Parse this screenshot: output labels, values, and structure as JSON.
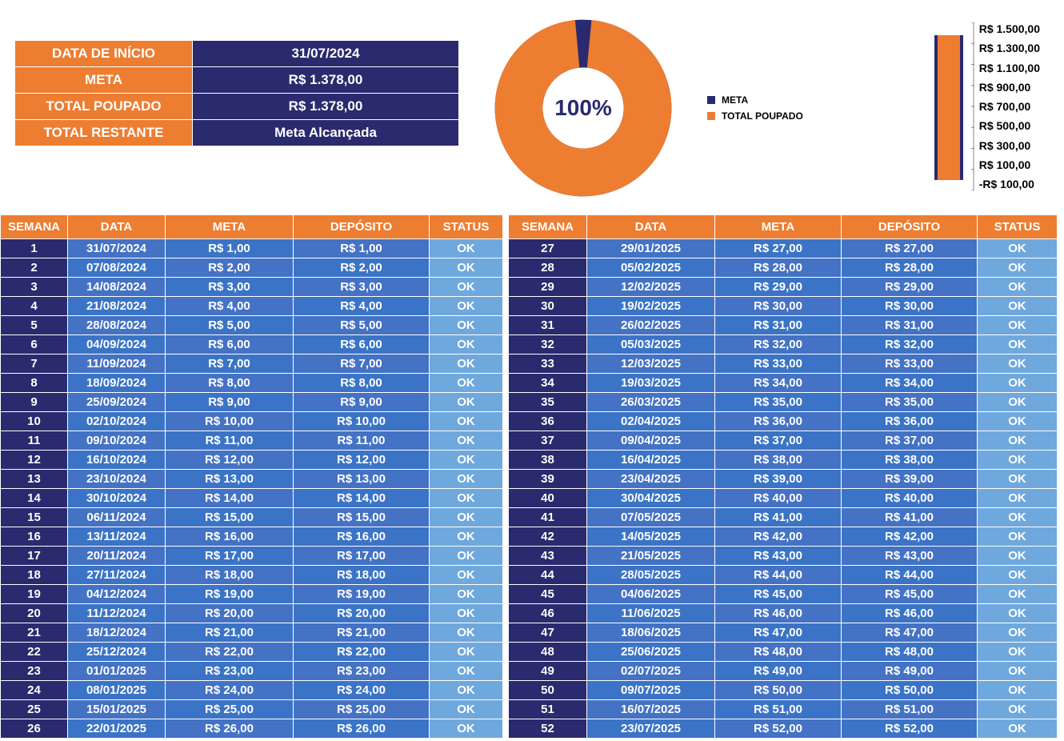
{
  "colors": {
    "orange": "#ed7d31",
    "navy": "#2a2a6e",
    "blue_dark": "#4472c4",
    "blue_mid": "#3b74c6",
    "blue_light": "#5b9bd5",
    "status_bg": "#6fa8dc"
  },
  "summary": {
    "labels": {
      "start": "DATA DE INÍCIO",
      "goal": "META",
      "saved": "TOTAL POUPADO",
      "remaining": "TOTAL RESTANTE"
    },
    "values": {
      "start": "31/07/2024",
      "goal": "R$ 1.378,00",
      "saved": "R$ 1.378,00",
      "remaining": "Meta Alcançada"
    }
  },
  "donut": {
    "type": "donut",
    "pct_label": "100%",
    "pct_value": 100,
    "series": [
      {
        "name": "META",
        "color": "#2a2a6e"
      },
      {
        "name": "TOTAL POUPADO",
        "color": "#ed7d31"
      }
    ],
    "legend_labels": {
      "meta": "META",
      "poupado": "TOTAL POUPADO"
    },
    "center_text_color": "#2a2a6e",
    "background": "#ffffff"
  },
  "bar": {
    "type": "bar",
    "bar_color": "#2a2a6e",
    "fill_color": "#ed7d31",
    "ylim": [
      -100,
      1500
    ],
    "value": 1378,
    "goal": 1378,
    "y_ticks": [
      "R$ 1.500,00",
      "R$ 1.300,00",
      "R$ 1.100,00",
      "R$ 900,00",
      "R$ 700,00",
      "R$ 500,00",
      "R$ 300,00",
      "R$ 100,00",
      "-R$ 100,00"
    ]
  },
  "table": {
    "headers": {
      "semana": "SEMANA",
      "data": "DATA",
      "meta": "META",
      "deposito": "DEPÓSITO",
      "status": "STATUS"
    },
    "left": [
      {
        "s": "1",
        "d": "31/07/2024",
        "m": "R$ 1,00",
        "p": "R$ 1,00",
        "st": "OK"
      },
      {
        "s": "2",
        "d": "07/08/2024",
        "m": "R$ 2,00",
        "p": "R$ 2,00",
        "st": "OK"
      },
      {
        "s": "3",
        "d": "14/08/2024",
        "m": "R$ 3,00",
        "p": "R$ 3,00",
        "st": "OK"
      },
      {
        "s": "4",
        "d": "21/08/2024",
        "m": "R$ 4,00",
        "p": "R$ 4,00",
        "st": "OK"
      },
      {
        "s": "5",
        "d": "28/08/2024",
        "m": "R$ 5,00",
        "p": "R$ 5,00",
        "st": "OK"
      },
      {
        "s": "6",
        "d": "04/09/2024",
        "m": "R$ 6,00",
        "p": "R$ 6,00",
        "st": "OK"
      },
      {
        "s": "7",
        "d": "11/09/2024",
        "m": "R$ 7,00",
        "p": "R$ 7,00",
        "st": "OK"
      },
      {
        "s": "8",
        "d": "18/09/2024",
        "m": "R$ 8,00",
        "p": "R$ 8,00",
        "st": "OK"
      },
      {
        "s": "9",
        "d": "25/09/2024",
        "m": "R$ 9,00",
        "p": "R$ 9,00",
        "st": "OK"
      },
      {
        "s": "10",
        "d": "02/10/2024",
        "m": "R$ 10,00",
        "p": "R$ 10,00",
        "st": "OK"
      },
      {
        "s": "11",
        "d": "09/10/2024",
        "m": "R$ 11,00",
        "p": "R$ 11,00",
        "st": "OK"
      },
      {
        "s": "12",
        "d": "16/10/2024",
        "m": "R$ 12,00",
        "p": "R$ 12,00",
        "st": "OK"
      },
      {
        "s": "13",
        "d": "23/10/2024",
        "m": "R$ 13,00",
        "p": "R$ 13,00",
        "st": "OK"
      },
      {
        "s": "14",
        "d": "30/10/2024",
        "m": "R$ 14,00",
        "p": "R$ 14,00",
        "st": "OK"
      },
      {
        "s": "15",
        "d": "06/11/2024",
        "m": "R$ 15,00",
        "p": "R$ 15,00",
        "st": "OK"
      },
      {
        "s": "16",
        "d": "13/11/2024",
        "m": "R$ 16,00",
        "p": "R$ 16,00",
        "st": "OK"
      },
      {
        "s": "17",
        "d": "20/11/2024",
        "m": "R$ 17,00",
        "p": "R$ 17,00",
        "st": "OK"
      },
      {
        "s": "18",
        "d": "27/11/2024",
        "m": "R$ 18,00",
        "p": "R$ 18,00",
        "st": "OK"
      },
      {
        "s": "19",
        "d": "04/12/2024",
        "m": "R$ 19,00",
        "p": "R$ 19,00",
        "st": "OK"
      },
      {
        "s": "20",
        "d": "11/12/2024",
        "m": "R$ 20,00",
        "p": "R$ 20,00",
        "st": "OK"
      },
      {
        "s": "21",
        "d": "18/12/2024",
        "m": "R$ 21,00",
        "p": "R$ 21,00",
        "st": "OK"
      },
      {
        "s": "22",
        "d": "25/12/2024",
        "m": "R$ 22,00",
        "p": "R$ 22,00",
        "st": "OK"
      },
      {
        "s": "23",
        "d": "01/01/2025",
        "m": "R$ 23,00",
        "p": "R$ 23,00",
        "st": "OK"
      },
      {
        "s": "24",
        "d": "08/01/2025",
        "m": "R$ 24,00",
        "p": "R$ 24,00",
        "st": "OK"
      },
      {
        "s": "25",
        "d": "15/01/2025",
        "m": "R$ 25,00",
        "p": "R$ 25,00",
        "st": "OK"
      },
      {
        "s": "26",
        "d": "22/01/2025",
        "m": "R$ 26,00",
        "p": "R$ 26,00",
        "st": "OK"
      }
    ],
    "right": [
      {
        "s": "27",
        "d": "29/01/2025",
        "m": "R$ 27,00",
        "p": "R$ 27,00",
        "st": "OK"
      },
      {
        "s": "28",
        "d": "05/02/2025",
        "m": "R$ 28,00",
        "p": "R$ 28,00",
        "st": "OK"
      },
      {
        "s": "29",
        "d": "12/02/2025",
        "m": "R$ 29,00",
        "p": "R$ 29,00",
        "st": "OK"
      },
      {
        "s": "30",
        "d": "19/02/2025",
        "m": "R$ 30,00",
        "p": "R$ 30,00",
        "st": "OK"
      },
      {
        "s": "31",
        "d": "26/02/2025",
        "m": "R$ 31,00",
        "p": "R$ 31,00",
        "st": "OK"
      },
      {
        "s": "32",
        "d": "05/03/2025",
        "m": "R$ 32,00",
        "p": "R$ 32,00",
        "st": "OK"
      },
      {
        "s": "33",
        "d": "12/03/2025",
        "m": "R$ 33,00",
        "p": "R$ 33,00",
        "st": "OK"
      },
      {
        "s": "34",
        "d": "19/03/2025",
        "m": "R$ 34,00",
        "p": "R$ 34,00",
        "st": "OK"
      },
      {
        "s": "35",
        "d": "26/03/2025",
        "m": "R$ 35,00",
        "p": "R$ 35,00",
        "st": "OK"
      },
      {
        "s": "36",
        "d": "02/04/2025",
        "m": "R$ 36,00",
        "p": "R$ 36,00",
        "st": "OK"
      },
      {
        "s": "37",
        "d": "09/04/2025",
        "m": "R$ 37,00",
        "p": "R$ 37,00",
        "st": "OK"
      },
      {
        "s": "38",
        "d": "16/04/2025",
        "m": "R$ 38,00",
        "p": "R$ 38,00",
        "st": "OK"
      },
      {
        "s": "39",
        "d": "23/04/2025",
        "m": "R$ 39,00",
        "p": "R$ 39,00",
        "st": "OK"
      },
      {
        "s": "40",
        "d": "30/04/2025",
        "m": "R$ 40,00",
        "p": "R$ 40,00",
        "st": "OK"
      },
      {
        "s": "41",
        "d": "07/05/2025",
        "m": "R$ 41,00",
        "p": "R$ 41,00",
        "st": "OK"
      },
      {
        "s": "42",
        "d": "14/05/2025",
        "m": "R$ 42,00",
        "p": "R$ 42,00",
        "st": "OK"
      },
      {
        "s": "43",
        "d": "21/05/2025",
        "m": "R$ 43,00",
        "p": "R$ 43,00",
        "st": "OK"
      },
      {
        "s": "44",
        "d": "28/05/2025",
        "m": "R$ 44,00",
        "p": "R$ 44,00",
        "st": "OK"
      },
      {
        "s": "45",
        "d": "04/06/2025",
        "m": "R$ 45,00",
        "p": "R$ 45,00",
        "st": "OK"
      },
      {
        "s": "46",
        "d": "11/06/2025",
        "m": "R$ 46,00",
        "p": "R$ 46,00",
        "st": "OK"
      },
      {
        "s": "47",
        "d": "18/06/2025",
        "m": "R$ 47,00",
        "p": "R$ 47,00",
        "st": "OK"
      },
      {
        "s": "48",
        "d": "25/06/2025",
        "m": "R$ 48,00",
        "p": "R$ 48,00",
        "st": "OK"
      },
      {
        "s": "49",
        "d": "02/07/2025",
        "m": "R$ 49,00",
        "p": "R$ 49,00",
        "st": "OK"
      },
      {
        "s": "50",
        "d": "09/07/2025",
        "m": "R$ 50,00",
        "p": "R$ 50,00",
        "st": "OK"
      },
      {
        "s": "51",
        "d": "16/07/2025",
        "m": "R$ 51,00",
        "p": "R$ 51,00",
        "st": "OK"
      },
      {
        "s": "52",
        "d": "23/07/2025",
        "m": "R$ 52,00",
        "p": "R$ 52,00",
        "st": "OK"
      }
    ]
  }
}
